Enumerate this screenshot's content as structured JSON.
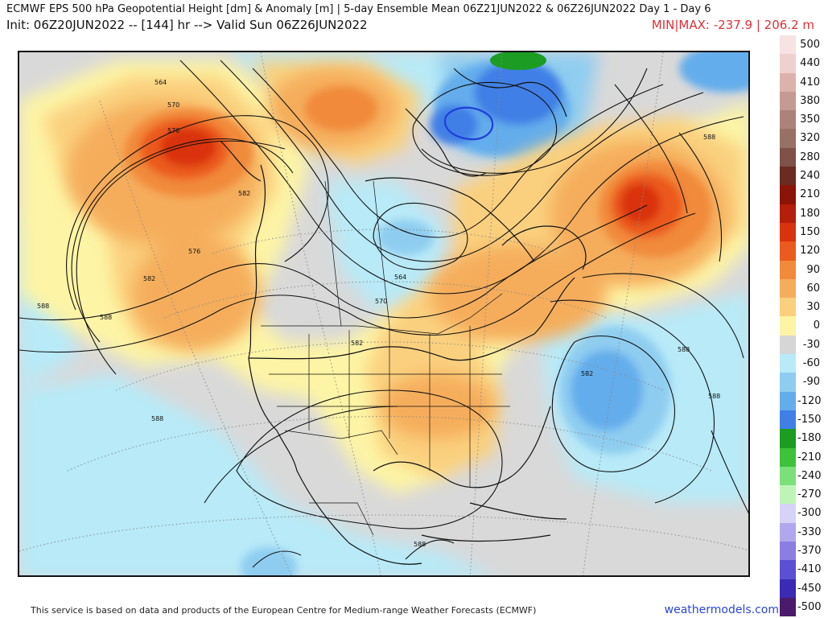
{
  "header": {
    "title": "ECMWF EPS 500 hPa Geopotential Height [dm] & Anomaly [m] | 5-day Ensemble Mean 06Z21JUN2022 & 06Z26JUN2022  Day 1 - Day 6",
    "init": "Init: 06Z20JUN2022 -- [144] hr --> Valid Sun 06Z26JUN2022",
    "minmax": "MIN|MAX: -237.9 | 206.2 m"
  },
  "colorbar": {
    "labels": [
      "500",
      "440",
      "410",
      "380",
      "350",
      "320",
      "280",
      "240",
      "210",
      "180",
      "150",
      "120",
      "90",
      "60",
      "30",
      "0",
      "-30",
      "-60",
      "-90",
      "-120",
      "-150",
      "-180",
      "-210",
      "-240",
      "-270",
      "-300",
      "-330",
      "-370",
      "-410",
      "-450",
      "-500"
    ],
    "colors": [
      "#f7e3e3",
      "#eed0cf",
      "#dcb2ad",
      "#c59a94",
      "#ad827b",
      "#977066",
      "#7e5248",
      "#6b2b20",
      "#8a1407",
      "#b51e0a",
      "#d9320e",
      "#eb5a1e",
      "#f18a3a",
      "#f5ad5c",
      "#fad07e",
      "#fdf4a5",
      "#d6d6d6",
      "#b8eaf8",
      "#8fcdf0",
      "#63adec",
      "#3f7fe6",
      "#1c9c22",
      "#3ec23a",
      "#7ce07a",
      "#bff4b7",
      "#d6d3f7",
      "#b1a7ee",
      "#8a7ee3",
      "#5b4fd2",
      "#3a2ab4",
      "#4a1a6c",
      "#8a1a8a",
      "#c024c0",
      "#e035d6",
      "#f78bf0"
    ]
  },
  "map": {
    "contour_labels": [
      "564",
      "570",
      "576",
      "576",
      "582",
      "588",
      "588",
      "588",
      "564",
      "570",
      "582",
      "582",
      "588",
      "588",
      "588",
      "582",
      "588"
    ]
  },
  "footer": {
    "credit": "This service is based on data and products of the European Centre for Medium-range Weather Forecasts (ECMWF)",
    "site": "weathermodels.com"
  }
}
